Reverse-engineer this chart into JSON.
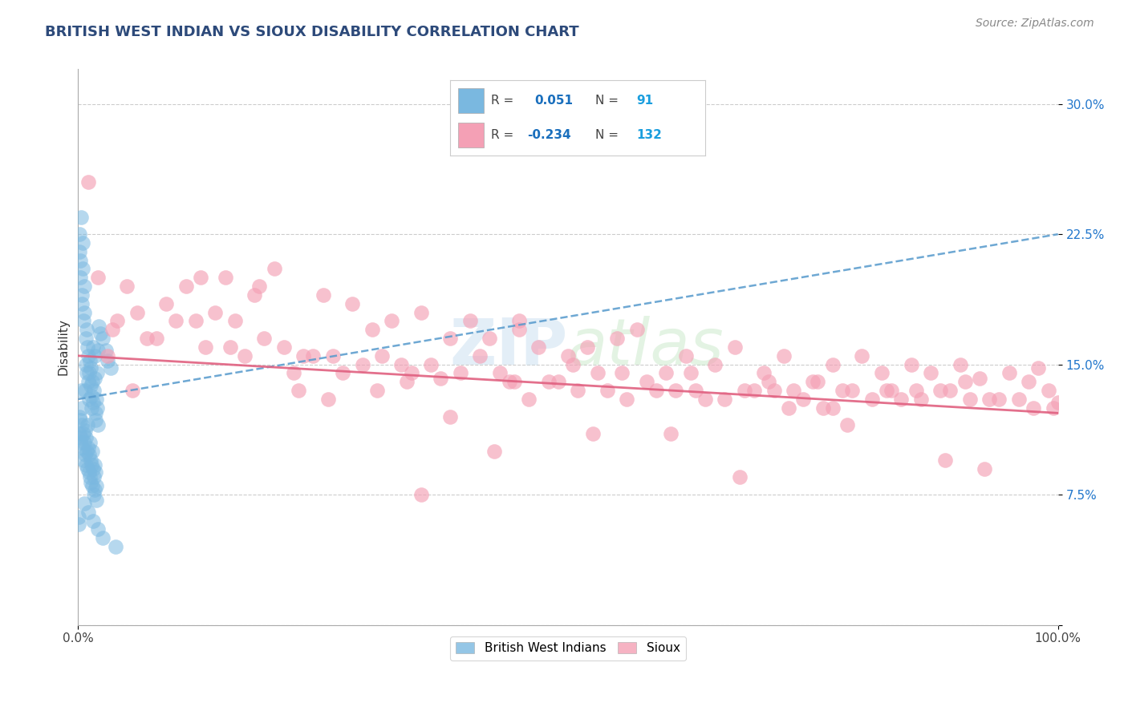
{
  "title": "BRITISH WEST INDIAN VS SIOUX DISABILITY CORRELATION CHART",
  "source": "Source: ZipAtlas.com",
  "ylabel": "Disability",
  "xlim": [
    0,
    100
  ],
  "ylim": [
    0,
    32
  ],
  "yticks": [
    0,
    7.5,
    15.0,
    22.5,
    30.0
  ],
  "xtick_labels": [
    "0.0%",
    "100.0%"
  ],
  "ytick_labels": [
    "",
    "7.5%",
    "15.0%",
    "22.5%",
    "30.0%"
  ],
  "title_color": "#2d4a7a",
  "title_fontsize": 13,
  "background_color": "#ffffff",
  "grid_color": "#cccccc",
  "blue_r": 0.051,
  "blue_n": 91,
  "pink_r": -0.234,
  "pink_n": 132,
  "legend_r_color": "#1a6fbd",
  "legend_n_color": "#1a9ede",
  "blue_scatter_color": "#7ab8e0",
  "pink_scatter_color": "#f4a0b5",
  "blue_line_color": "#5599cc",
  "pink_line_color": "#e06080",
  "blue_trend_x": [
    0,
    100
  ],
  "blue_trend_y": [
    13.0,
    22.5
  ],
  "pink_trend_x": [
    0,
    100
  ],
  "pink_trend_y": [
    15.5,
    12.2
  ],
  "blue_points_x": [
    0.1,
    0.15,
    0.2,
    0.25,
    0.3,
    0.35,
    0.4,
    0.45,
    0.5,
    0.55,
    0.6,
    0.65,
    0.7,
    0.75,
    0.8,
    0.85,
    0.9,
    0.95,
    1.0,
    1.05,
    1.1,
    1.15,
    1.2,
    1.25,
    1.3,
    1.35,
    1.4,
    1.45,
    1.5,
    1.55,
    1.6,
    1.65,
    1.7,
    1.75,
    1.8,
    1.85,
    1.9,
    1.95,
    2.0,
    2.05,
    0.1,
    0.12,
    0.18,
    0.22,
    0.28,
    0.32,
    0.38,
    0.42,
    0.48,
    0.52,
    0.58,
    0.62,
    0.68,
    0.72,
    0.78,
    0.82,
    0.88,
    0.92,
    0.98,
    1.02,
    1.08,
    1.12,
    1.18,
    1.22,
    1.28,
    1.32,
    1.38,
    1.42,
    1.48,
    1.52,
    1.58,
    1.62,
    1.68,
    1.72,
    1.78,
    1.82,
    1.88,
    0.05,
    0.08,
    2.1,
    2.3,
    2.5,
    2.8,
    3.0,
    3.3,
    0.6,
    1.0,
    1.5,
    2.0,
    2.5,
    3.8
  ],
  "blue_points_y": [
    21.5,
    22.5,
    20.0,
    21.0,
    23.5,
    19.0,
    18.5,
    20.5,
    22.0,
    17.5,
    19.5,
    18.0,
    13.5,
    16.5,
    15.0,
    17.0,
    14.5,
    16.0,
    14.0,
    15.5,
    13.0,
    14.5,
    15.2,
    13.8,
    14.8,
    12.5,
    13.2,
    14.0,
    16.0,
    12.8,
    13.5,
    15.5,
    14.2,
    12.2,
    11.8,
    13.0,
    12.5,
    14.5,
    15.8,
    11.5,
    11.0,
    12.0,
    10.5,
    11.8,
    13.5,
    10.8,
    11.5,
    12.5,
    10.2,
    11.0,
    9.5,
    10.5,
    11.2,
    9.8,
    10.8,
    9.2,
    10.0,
    11.5,
    9.0,
    10.2,
    8.8,
    9.8,
    10.5,
    8.5,
    9.5,
    8.2,
    9.2,
    10.0,
    8.0,
    9.0,
    7.5,
    8.5,
    9.2,
    7.8,
    8.8,
    7.2,
    8.0,
    5.8,
    6.2,
    17.2,
    16.8,
    16.5,
    15.8,
    15.2,
    14.8,
    7.0,
    6.5,
    6.0,
    5.5,
    5.0,
    4.5
  ],
  "pink_points_x": [
    2.0,
    5.0,
    8.0,
    12.0,
    15.0,
    18.5,
    20.0,
    25.0,
    28.0,
    30.0,
    32.0,
    35.0,
    38.0,
    40.0,
    42.0,
    45.0,
    47.0,
    50.0,
    52.0,
    55.0,
    57.0,
    60.0,
    62.0,
    65.0,
    67.0,
    70.0,
    72.0,
    75.0,
    77.0,
    80.0,
    82.0,
    85.0,
    87.0,
    90.0,
    92.0,
    95.0,
    97.0,
    98.0,
    99.0,
    100.0,
    3.0,
    7.0,
    10.0,
    13.0,
    17.0,
    22.0,
    27.0,
    33.0,
    37.0,
    43.0,
    48.0,
    53.0,
    58.0,
    63.0,
    68.0,
    73.0,
    78.0,
    83.0,
    88.0,
    93.0,
    4.0,
    9.0,
    14.0,
    19.0,
    24.0,
    29.0,
    34.0,
    39.0,
    44.0,
    49.0,
    54.0,
    59.0,
    64.0,
    69.0,
    74.0,
    79.0,
    84.0,
    89.0,
    94.0,
    99.5,
    6.0,
    11.0,
    16.0,
    21.0,
    26.0,
    31.0,
    36.0,
    41.0,
    46.0,
    51.0,
    56.0,
    61.0,
    66.0,
    71.0,
    76.0,
    81.0,
    86.0,
    91.0,
    96.0,
    1.0,
    23.0,
    50.5,
    75.5,
    90.5,
    3.5,
    15.5,
    44.5,
    62.5,
    82.5,
    97.5,
    5.5,
    30.5,
    55.5,
    70.5,
    85.5,
    42.5,
    67.5,
    92.5,
    18.0,
    38.0,
    60.5,
    78.5,
    45.0,
    35.0,
    25.5,
    72.5,
    88.5,
    12.5,
    52.5,
    22.5,
    77.0,
    33.5
  ],
  "pink_points_y": [
    20.0,
    19.5,
    16.5,
    17.5,
    20.0,
    19.5,
    20.5,
    19.0,
    18.5,
    17.0,
    17.5,
    18.0,
    16.5,
    17.5,
    16.5,
    17.0,
    16.0,
    15.5,
    16.0,
    16.5,
    17.0,
    14.5,
    15.5,
    15.0,
    16.0,
    14.5,
    15.5,
    14.0,
    15.0,
    15.5,
    14.5,
    15.0,
    14.5,
    15.0,
    14.2,
    14.5,
    14.0,
    14.8,
    13.5,
    12.8,
    15.5,
    16.5,
    17.5,
    16.0,
    15.5,
    14.5,
    14.5,
    15.0,
    14.2,
    14.5,
    14.0,
    14.5,
    14.0,
    13.5,
    13.5,
    13.5,
    13.5,
    13.5,
    13.5,
    13.0,
    17.5,
    18.5,
    18.0,
    16.5,
    15.5,
    15.0,
    14.5,
    14.5,
    14.0,
    14.0,
    13.5,
    13.5,
    13.0,
    13.5,
    13.0,
    13.5,
    13.0,
    13.5,
    13.0,
    12.5,
    18.0,
    19.5,
    17.5,
    16.0,
    15.5,
    15.5,
    15.0,
    15.5,
    13.0,
    13.5,
    13.0,
    13.5,
    13.0,
    13.5,
    12.5,
    13.0,
    13.0,
    13.0,
    13.0,
    25.5,
    15.5,
    15.0,
    14.0,
    14.0,
    17.0,
    16.0,
    14.0,
    14.5,
    13.5,
    12.5,
    13.5,
    13.5,
    14.5,
    14.0,
    13.5,
    10.0,
    8.5,
    9.0,
    19.0,
    12.0,
    11.0,
    11.5,
    17.5,
    7.5,
    13.0,
    12.5,
    9.5,
    20.0,
    11.0,
    13.5,
    12.5,
    14.0
  ]
}
